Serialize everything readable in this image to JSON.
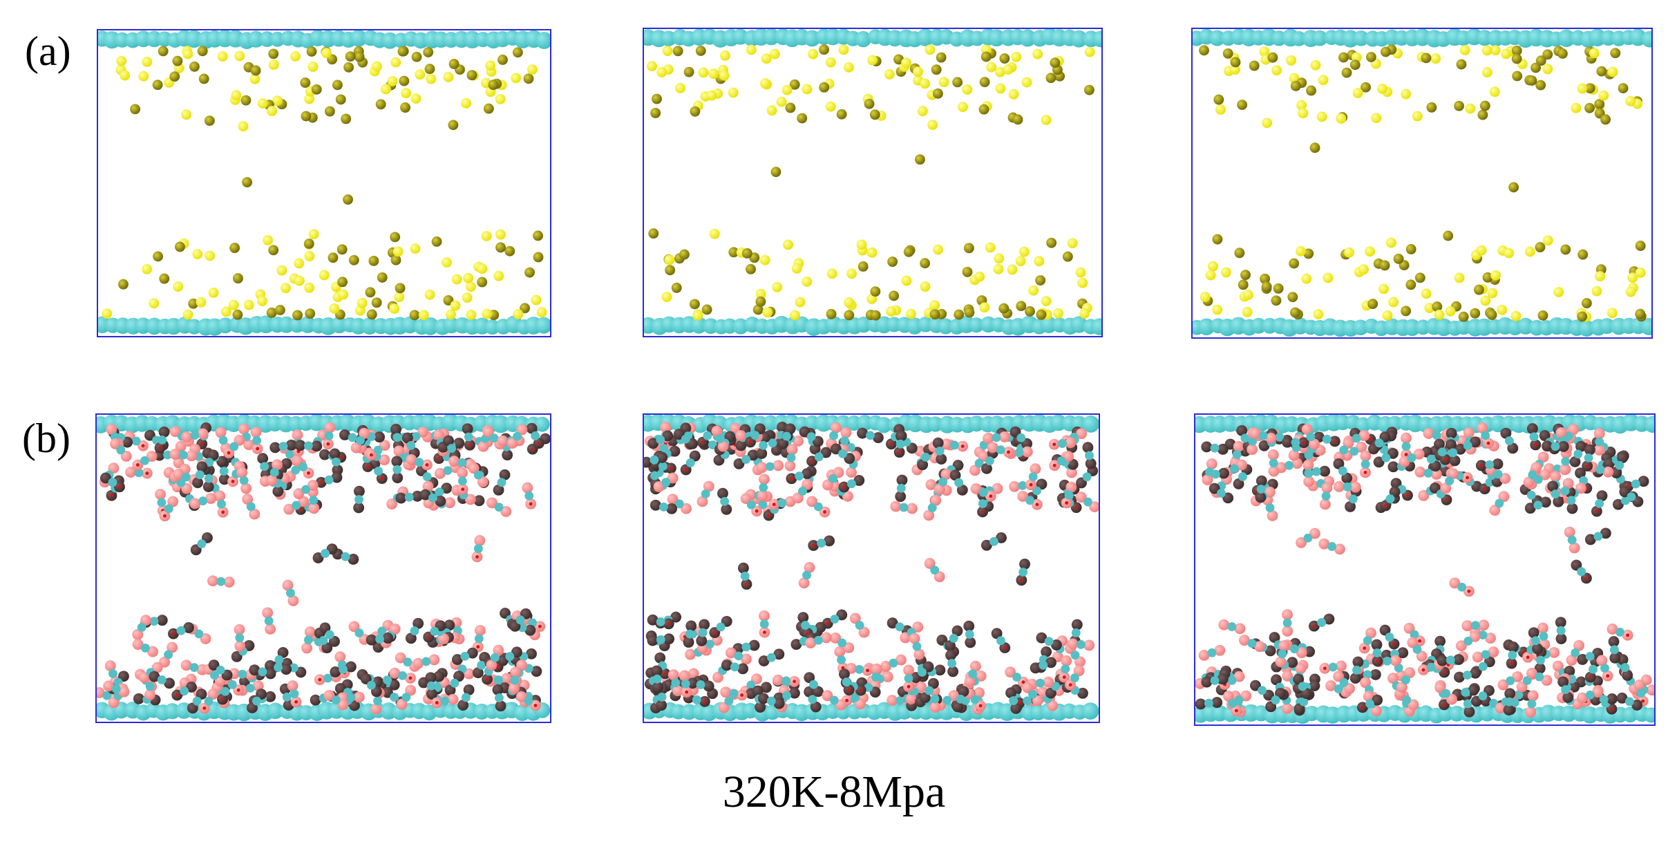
{
  "labels": {
    "row_a": "(a)",
    "row_b": "(b)"
  },
  "caption": "320K-8Mpa",
  "colors": {
    "frame": "#2b2bd6",
    "wall_atom": "#3fbcc0",
    "gas_atom": "#e8e000",
    "molecule_carbon": "#55bfc4",
    "molecule_oxygen": "#f07a7a",
    "molecule_dark": "#3a2a2a"
  },
  "rows": [
    {
      "id": "a",
      "species": "single-atom",
      "panels": 3
    },
    {
      "id": "b",
      "species": "triatomic-molecule",
      "panels": 3
    }
  ]
}
